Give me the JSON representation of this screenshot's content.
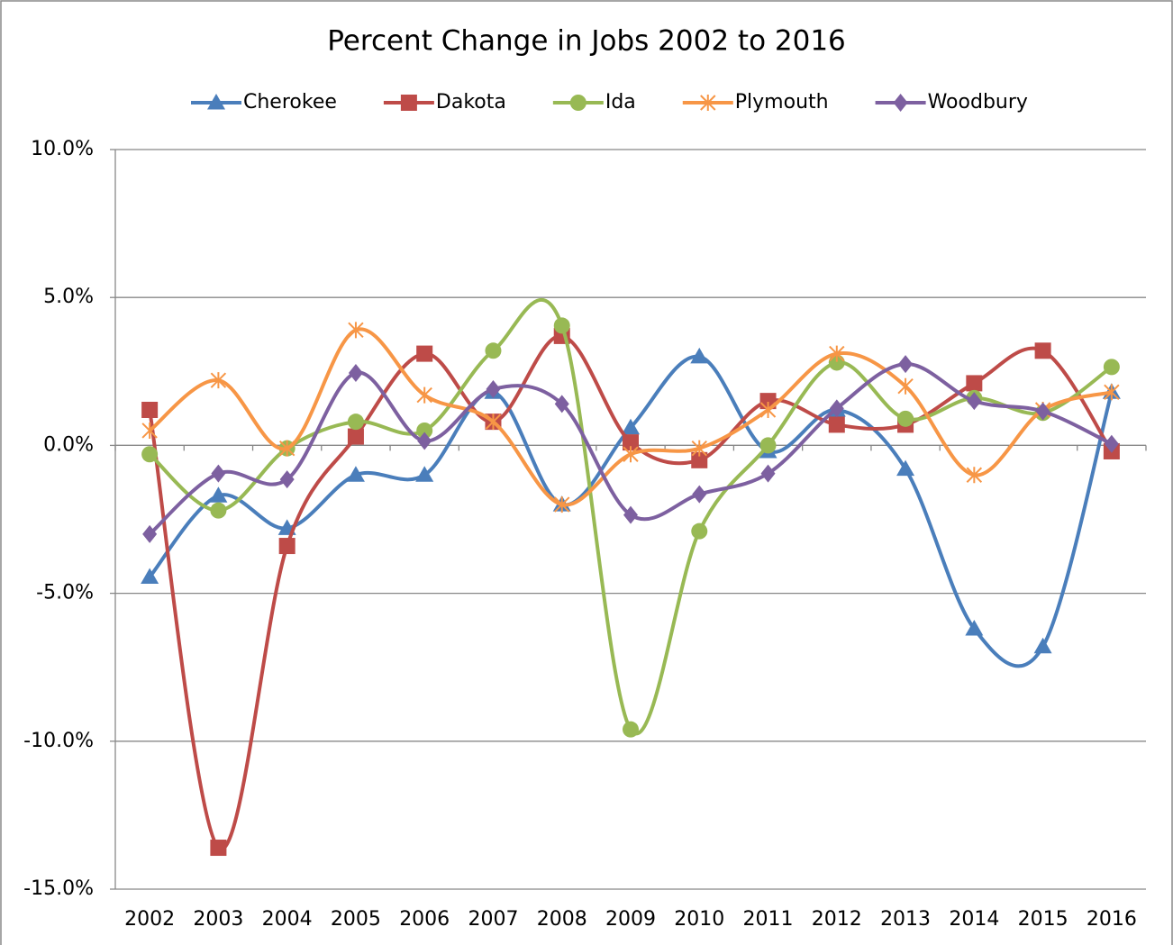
{
  "chart_data": {
    "type": "line",
    "title": "Percent Change in Jobs 2002 to 2016",
    "categories": [
      "2002",
      "2003",
      "2004",
      "2005",
      "2006",
      "2007",
      "2008",
      "2009",
      "2010",
      "2011",
      "2012",
      "2013",
      "2014",
      "2015",
      "2016"
    ],
    "series": [
      {
        "name": "Cherokee",
        "color": "#4a7ebb",
        "marker": "triangle",
        "values": [
          -4.45,
          -1.7,
          -2.8,
          -1.0,
          -1.0,
          1.8,
          -2.0,
          0.6,
          3.0,
          -0.2,
          1.2,
          -0.8,
          -6.2,
          -6.8,
          1.8
        ]
      },
      {
        "name": "Dakota",
        "color": "#be4b48",
        "marker": "square",
        "values": [
          1.2,
          -13.6,
          -3.4,
          0.3,
          3.1,
          0.8,
          3.7,
          0.1,
          -0.5,
          1.5,
          0.7,
          0.7,
          2.1,
          3.2,
          -0.2
        ]
      },
      {
        "name": "Ida",
        "color": "#98b954",
        "marker": "circle",
        "values": [
          -0.3,
          -2.2,
          -0.1,
          0.8,
          0.5,
          3.2,
          4.05,
          -9.6,
          -2.9,
          0.0,
          2.8,
          0.9,
          1.6,
          1.1,
          2.65
        ]
      },
      {
        "name": "Plymouth",
        "color": "#f79646",
        "marker": "asterisk",
        "values": [
          0.5,
          2.2,
          -0.1,
          3.9,
          1.7,
          0.8,
          -2.0,
          -0.3,
          -0.1,
          1.2,
          3.1,
          2.0,
          -1.0,
          1.2,
          1.8
        ]
      },
      {
        "name": "Woodbury",
        "color": "#7d60a0",
        "marker": "diamond",
        "values": [
          -3.0,
          -0.95,
          -1.15,
          2.45,
          0.15,
          1.9,
          1.4,
          -2.35,
          -1.65,
          -0.95,
          1.25,
          2.75,
          1.5,
          1.15,
          0.05
        ]
      }
    ],
    "ylim": [
      -15,
      10
    ],
    "yticks": [
      {
        "value": -15,
        "label": "-15.0%"
      },
      {
        "value": -10,
        "label": "-10.0%"
      },
      {
        "value": -5,
        "label": "-5.0%"
      },
      {
        "value": 0,
        "label": "0.0%"
      },
      {
        "value": 5,
        "label": "5.0%"
      },
      {
        "value": 10,
        "label": "10.0%"
      }
    ],
    "grid": true,
    "smooth": true,
    "legend": "top"
  }
}
